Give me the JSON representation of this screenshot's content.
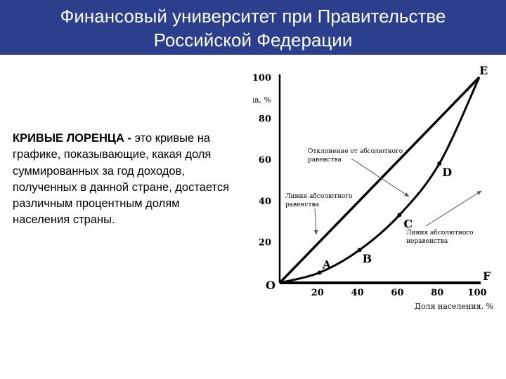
{
  "header": {
    "line1": "Финансовый университет при Правительстве",
    "line2": "Российской  Федерации"
  },
  "text": {
    "term": "КРИВЫЕ ЛОРЕНЦА -",
    "definition": " это кривые на графике, показывающие, какая доля суммированных за год доходов, полученных в данной стране, достается различным процентным долям населения страны."
  },
  "chart_data": {
    "type": "line",
    "ylabel": "Доля дохода, %",
    "xlabel": "Доля населения, %",
    "xlim": [
      0,
      100
    ],
    "ylim": [
      0,
      100
    ],
    "y_ticks": [
      "100",
      "80",
      "60",
      "40",
      "20"
    ],
    "x_ticks": [
      "20",
      "40",
      "60",
      "80",
      "100"
    ],
    "series": [
      {
        "values": [
          [
            0,
            0
          ],
          [
            100,
            100
          ]
        ]
      },
      {
        "values": [
          [
            0,
            0
          ],
          [
            20,
            5
          ],
          [
            40,
            16
          ],
          [
            60,
            33
          ],
          [
            80,
            58
          ],
          [
            100,
            100
          ]
        ]
      }
    ],
    "points": [
      {
        "label": "O",
        "x": 0,
        "y": 0
      },
      {
        "label": "A",
        "x": 20,
        "y": 5
      },
      {
        "label": "B",
        "x": 40,
        "y": 16
      },
      {
        "label": "C",
        "x": 60,
        "y": 33
      },
      {
        "label": "D",
        "x": 80,
        "y": 58
      },
      {
        "label": "E",
        "x": 100,
        "y": 100
      },
      {
        "label": "F",
        "x": 100,
        "y": 0
      }
    ],
    "annotations": [
      {
        "text": [
          "Отклонение от абсолютного",
          "равенства"
        ]
      },
      {
        "text": [
          "Линия абсолютного",
          "равенства"
        ]
      },
      {
        "text": [
          "Линия абсолютного",
          "неравенства"
        ]
      }
    ],
    "colors": {
      "line": "#000000",
      "arrow": "#555555"
    }
  }
}
